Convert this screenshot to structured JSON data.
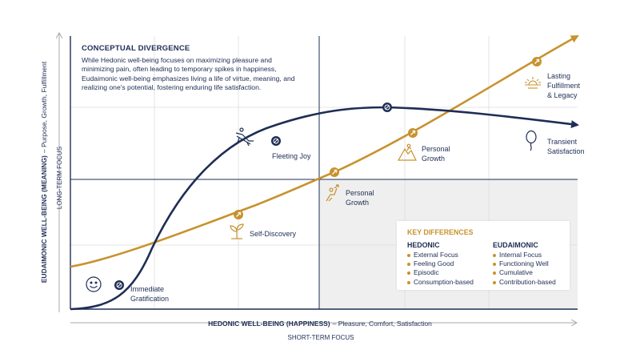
{
  "x_axis": {
    "title": "HEDONIC WELL-BEING (HAPPINESS)",
    "subtitle": "– Pleasure, Comfort, Satisfaction",
    "focus": "SHORT-TERM FOCUS"
  },
  "y_axis": {
    "title": "EUDAIMONIC WELL-BEING (MEANING)",
    "subtitle": "– Purpose, Growth, Fulfillment",
    "focus": "LONG-TERM FOCUS"
  },
  "callout": {
    "title": "CONCEPTUAL DIVERGENCE",
    "body": "While Hedonic well-being focuses on maximizing pleasure and minimizing pain, often leading to temporary spikes in happiness, Eudaimonic well-being emphasizes living a life of virtue, meaning, and realizing one's potential, fostering enduring life satisfaction."
  },
  "hedonic_labels": {
    "immediate_1": "Immediate",
    "immediate_2": "Gratification",
    "fleeting": "Fleeting Joy",
    "transient_1": "Transient",
    "transient_2": "Satisfaction"
  },
  "eudaimonic_labels": {
    "self_discovery": "Self-Discovery",
    "growth_a_1": "Personal",
    "growth_a_2": "Growth",
    "growth_b_1": "Personal",
    "growth_b_2": "Growth",
    "lasting_1": "Lasting",
    "lasting_2": "Fulfillment",
    "lasting_3": "& Legacy"
  },
  "key_differences": {
    "title": "KEY DIFFERENCES",
    "hedonic": {
      "heading": "HEDONIC",
      "items": [
        "External Focus",
        "Feeling Good",
        "Episodic",
        "Consumption-based"
      ]
    },
    "eudaimonic": {
      "heading": "EUDAIMONIC",
      "items": [
        "Internal Focus",
        "Functioning Well",
        "Cumulative",
        "Contribution-based"
      ]
    }
  },
  "colors": {
    "navy": "#1e2d55",
    "gold": "#c8922e",
    "grid": "#dcdcdc",
    "shade": "#efefef"
  },
  "icons": {
    "immediate": "smiley-icon",
    "fleeting": "lounger-icon",
    "transient": "balloon-icon",
    "self_discovery": "sprout-icon",
    "growth_a": "climber-icon",
    "growth_b": "mountain-climber-icon",
    "lasting": "sun-icon"
  }
}
